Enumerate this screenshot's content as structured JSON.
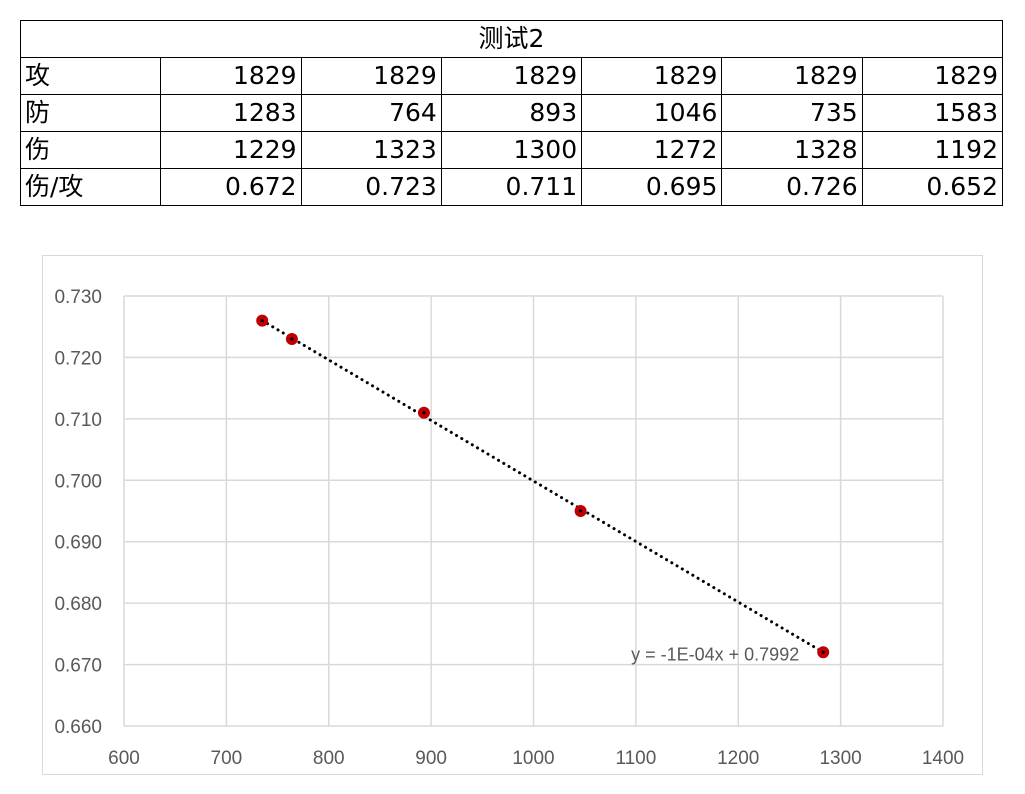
{
  "table": {
    "title": "测试2",
    "rows": [
      {
        "label": "攻",
        "values": [
          "1829",
          "1829",
          "1829",
          "1829",
          "1829",
          "1829"
        ]
      },
      {
        "label": "防",
        "values": [
          "1283",
          "764",
          "893",
          "1046",
          "735",
          "1583"
        ]
      },
      {
        "label": "伤",
        "values": [
          "1229",
          "1323",
          "1300",
          "1272",
          "1328",
          "1192"
        ]
      },
      {
        "label": "伤/攻",
        "values": [
          "0.672",
          "0.723",
          "0.711",
          "0.695",
          "0.726",
          "0.652"
        ]
      }
    ]
  },
  "chart_data": {
    "type": "scatter",
    "title": "",
    "xlabel": "",
    "ylabel": "",
    "xlim": [
      600,
      1400
    ],
    "ylim": [
      0.66,
      0.73
    ],
    "x_ticks": [
      "600",
      "700",
      "800",
      "900",
      "1000",
      "1100",
      "1200",
      "1300",
      "1400"
    ],
    "y_ticks": [
      "0.660",
      "0.670",
      "0.680",
      "0.690",
      "0.700",
      "0.710",
      "0.720",
      "0.730"
    ],
    "grid": true,
    "series": [
      {
        "points": [
          {
            "x": 1283,
            "y": 0.672
          },
          {
            "x": 764,
            "y": 0.723
          },
          {
            "x": 893,
            "y": 0.711
          },
          {
            "x": 1046,
            "y": 0.695
          },
          {
            "x": 735,
            "y": 0.726
          }
        ],
        "color": "#c00000"
      }
    ],
    "trendline": {
      "type": "linear",
      "style": "dotted",
      "color": "#000000",
      "x_range": [
        735,
        1283
      ],
      "slope": -0.0001,
      "intercept": 0.7992,
      "equation_label": "y = -1E-04x + 0.7992"
    }
  }
}
